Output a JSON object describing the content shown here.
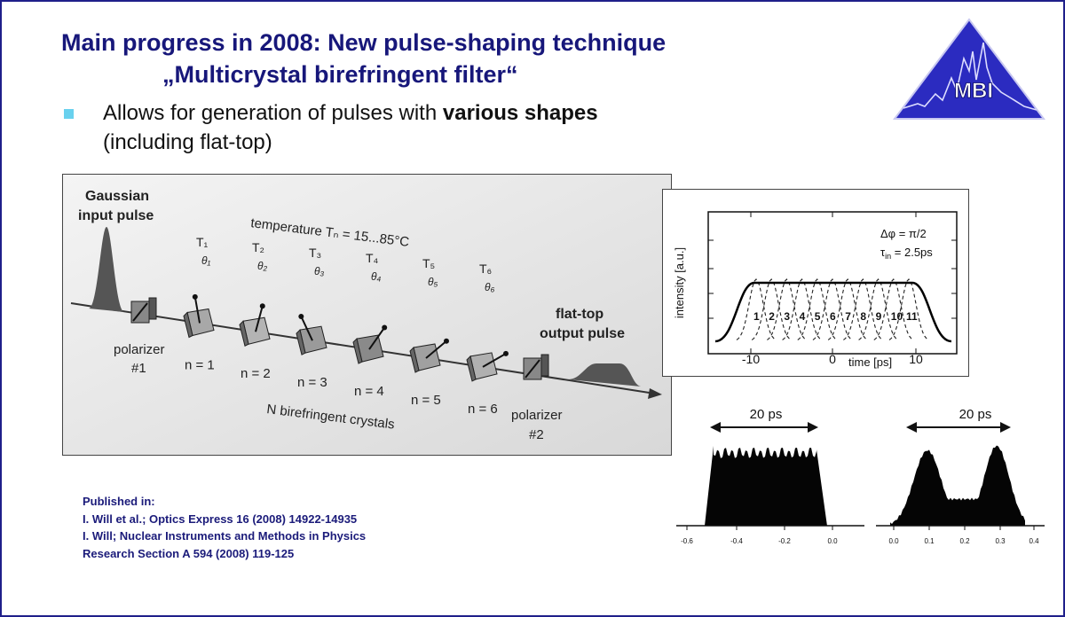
{
  "title": {
    "line1": "Main progress in 2008: New pulse-shaping technique",
    "line2": "„Multicrystal birefringent filter“"
  },
  "bullet": {
    "line1_pre": "Allows for generation of pulses with ",
    "line1_bold": "various shapes",
    "line2": "(including flat-top)"
  },
  "logo": {
    "text": "MBI"
  },
  "setup": {
    "input_label_1": "Gaussian",
    "input_label_2": "input pulse",
    "temperature": "temperature Tₙ = 15...85°C",
    "polarizer1_1": "polarizer",
    "polarizer1_2": "#1",
    "polarizer2_1": "polarizer",
    "polarizer2_2": "#2",
    "output_label_1": "flat-top",
    "output_label_2": "output pulse",
    "crystals_caption": "N birefringent crystals",
    "crystals": [
      {
        "T": "T₁",
        "theta": "θ₁",
        "n": "n = 1"
      },
      {
        "T": "T₂",
        "theta": "θ₂",
        "n": "n = 2"
      },
      {
        "T": "T₃",
        "theta": "θ₃",
        "n": "n = 3"
      },
      {
        "T": "T₄",
        "theta": "θ₄",
        "n": "n = 4"
      },
      {
        "T": "T₅",
        "theta": "θ₅",
        "n": "n = 5"
      },
      {
        "T": "T₆",
        "theta": "θ₆",
        "n": "n = 6"
      }
    ]
  },
  "sim_plot": {
    "ylabel": "intensity [a.u.]",
    "xlabel": "time [ps]",
    "xticks": [
      "-10",
      "0",
      "10"
    ],
    "param1": "Δφ = π/2",
    "param2": "τin = 2.5ps",
    "pulse_numbers": [
      "1",
      "2",
      "3",
      "4",
      "5",
      "6",
      "7",
      "8",
      "9",
      "10",
      "11"
    ]
  },
  "measured": {
    "left": {
      "width_label": "20 ps",
      "xticks": [
        "-0.6",
        "-0.4",
        "-0.2",
        "0.0"
      ]
    },
    "right": {
      "width_label": "20 ps",
      "xticks": [
        "0.0",
        "0.1",
        "0.2",
        "0.3",
        "0.4"
      ]
    }
  },
  "publications": {
    "heading": "Published in:",
    "ref1": "I. Will et al.; Optics Express 16 (2008) 14922-14935",
    "ref2": "I. Will; Nuclear Instruments and Methods in Physics",
    "ref3": "Research Section A 594 (2008) 119-125"
  },
  "colors": {
    "title": "#17177a",
    "bullet": "#69d1ee",
    "logo_bg": "#2b2bc0"
  }
}
